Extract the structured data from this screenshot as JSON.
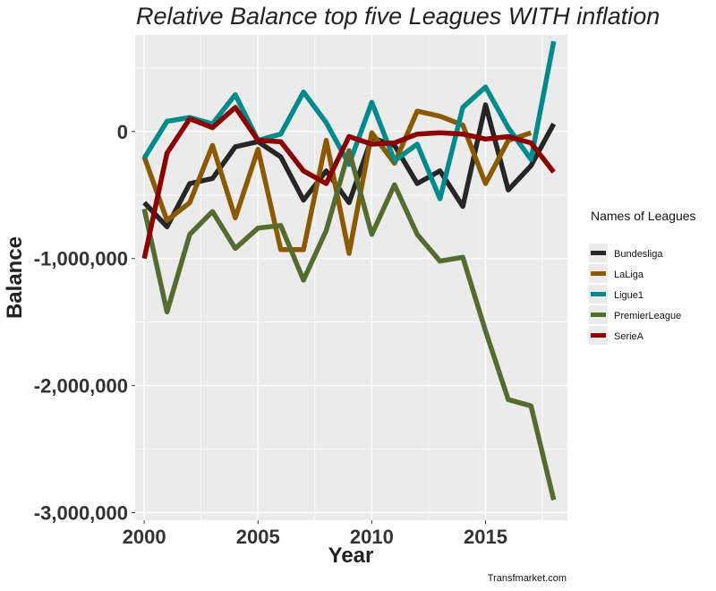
{
  "chart_data": {
    "type": "line",
    "title": "Relative Balance top five Leagues   WITH inflation",
    "xlabel": "Year",
    "ylabel": "Balance",
    "caption": "Transfmarket.com",
    "legend_title": "Names of Leagues",
    "legend_position": "right",
    "grid": true,
    "xlim": [
      1999.6,
      2018.6
    ],
    "ylim": [
      -3060000,
      760000
    ],
    "x_ticks": [
      2000,
      2005,
      2010,
      2015
    ],
    "x_tick_labels": [
      "2000",
      "2005",
      "2010",
      "2015"
    ],
    "y_ticks": [
      0,
      -1000000,
      -2000000,
      -3000000
    ],
    "y_tick_labels": [
      "0",
      "-1,000,000",
      "-2,000,000",
      "-3,000,000"
    ],
    "colors": {
      "Bundesliga": "#262626",
      "LaLiga": "#8b5a00",
      "Ligue1": "#008b8b",
      "PremierLeague": "#556b2f",
      "SerieA": "#8b0000"
    },
    "series": [
      {
        "name": "Bundesliga",
        "x": [
          2000,
          2001,
          2002,
          2003,
          2004,
          2005,
          2006,
          2007,
          2008,
          2009,
          2010,
          2011,
          2012,
          2013,
          2014,
          2015,
          2016,
          2017,
          2018
        ],
        "values": [
          -560000,
          -750000,
          -410000,
          -370000,
          -120000,
          -80000,
          -200000,
          -540000,
          -310000,
          -560000,
          -50000,
          -110000,
          -410000,
          -310000,
          -590000,
          210000,
          -460000,
          -270000,
          60000
        ]
      },
      {
        "name": "LaLiga",
        "x": [
          2000,
          2001,
          2002,
          2003,
          2004,
          2005,
          2006,
          2007,
          2008,
          2009,
          2010,
          2011,
          2012,
          2013,
          2014,
          2015,
          2016,
          2017
        ],
        "values": [
          -200000,
          -700000,
          -560000,
          -110000,
          -680000,
          -140000,
          -930000,
          -930000,
          -70000,
          -960000,
          -10000,
          -250000,
          160000,
          120000,
          50000,
          -410000,
          -70000,
          -10000
        ]
      },
      {
        "name": "Ligue1",
        "x": [
          2000,
          2001,
          2002,
          2003,
          2004,
          2005,
          2006,
          2007,
          2008,
          2009,
          2010,
          2011,
          2012,
          2013,
          2014,
          2015,
          2016,
          2017,
          2018
        ],
        "values": [
          -210000,
          80000,
          110000,
          60000,
          290000,
          -70000,
          -20000,
          310000,
          70000,
          -260000,
          230000,
          -230000,
          -100000,
          -530000,
          190000,
          350000,
          30000,
          -220000,
          710000
        ]
      },
      {
        "name": "PremierLeague",
        "x": [
          2000,
          2001,
          2002,
          2003,
          2004,
          2005,
          2006,
          2007,
          2008,
          2009,
          2010,
          2011,
          2012,
          2013,
          2014,
          2015,
          2016,
          2017,
          2018
        ],
        "values": [
          -610000,
          -1420000,
          -810000,
          -630000,
          -920000,
          -760000,
          -740000,
          -1170000,
          -780000,
          -150000,
          -810000,
          -420000,
          -810000,
          -1020000,
          -990000,
          -1570000,
          -2110000,
          -2160000,
          -2900000
        ]
      },
      {
        "name": "SerieA",
        "x": [
          2000,
          2001,
          2002,
          2003,
          2004,
          2005,
          2006,
          2007,
          2008,
          2009,
          2010,
          2011,
          2012,
          2013,
          2014,
          2015,
          2016,
          2017,
          2018
        ],
        "values": [
          -1000000,
          -170000,
          100000,
          30000,
          190000,
          -70000,
          -80000,
          -310000,
          -410000,
          -40000,
          -100000,
          -90000,
          -20000,
          -10000,
          -20000,
          -60000,
          -40000,
          -90000,
          -320000
        ]
      }
    ]
  }
}
